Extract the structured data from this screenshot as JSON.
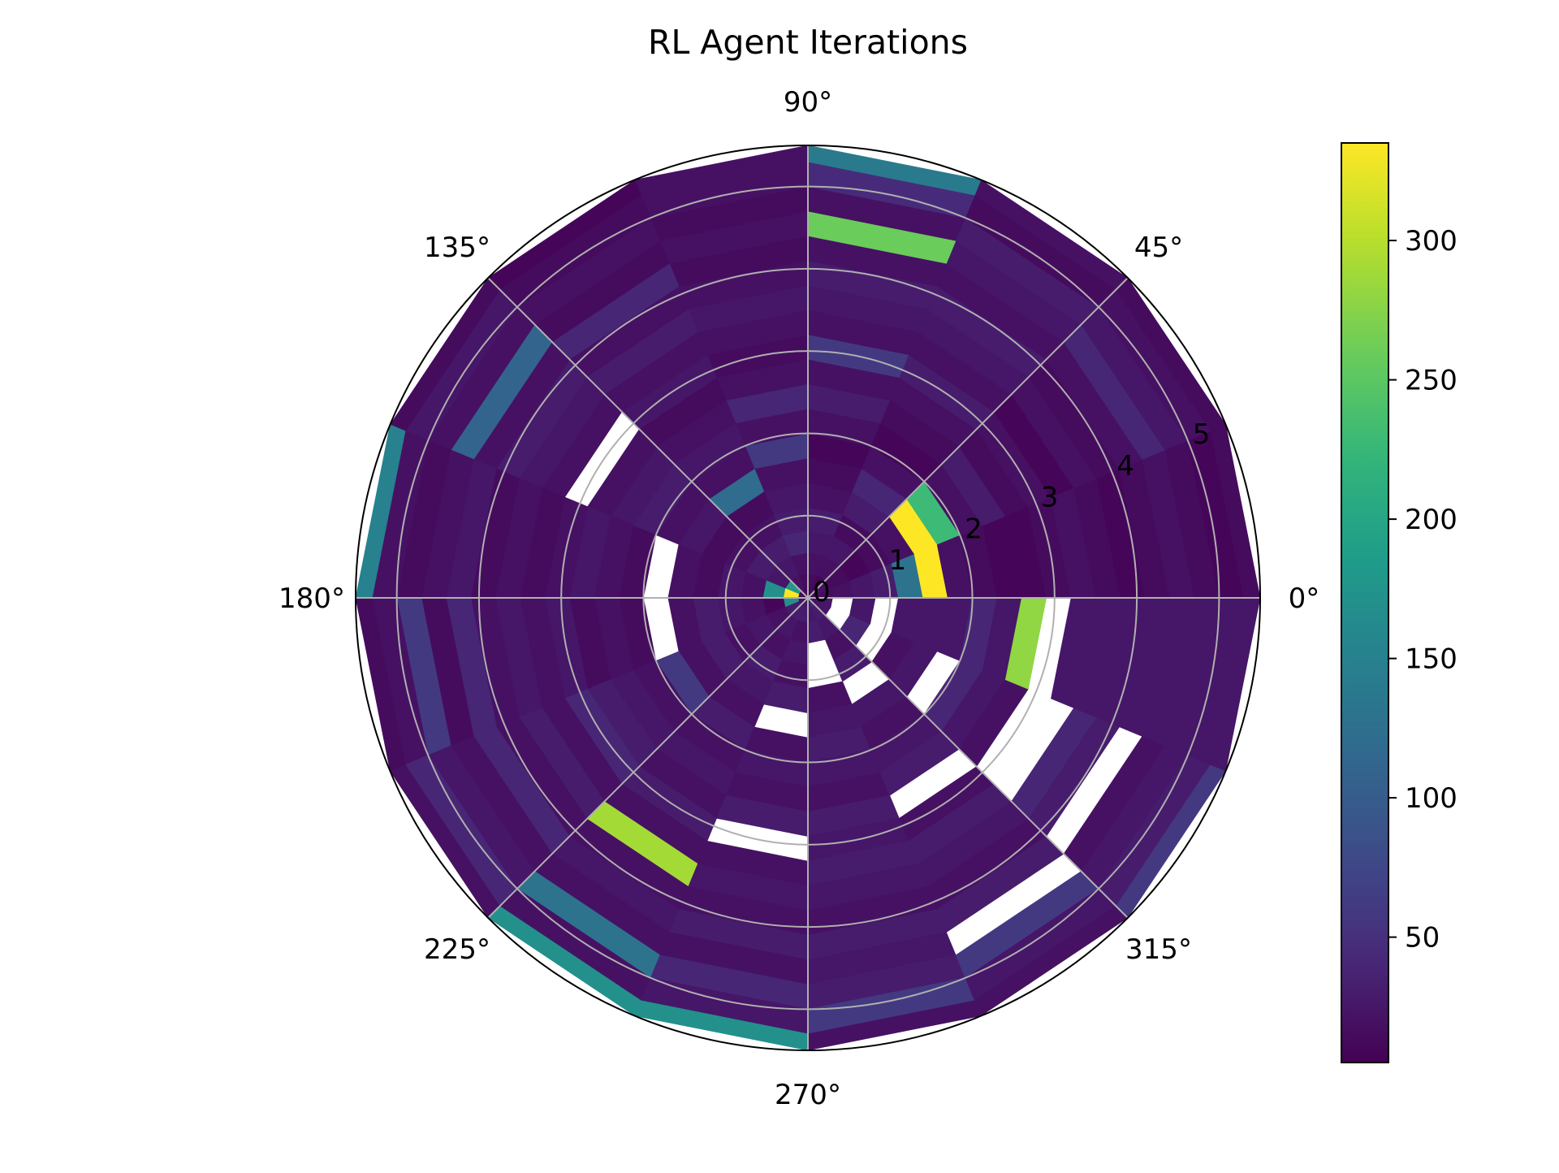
{
  "chart_data": {
    "type": "heatmap",
    "projection": "polar",
    "title": "RL Agent Iterations",
    "angle_ticks": [
      "0°",
      "45°",
      "90°",
      "135°",
      "180°",
      "225°",
      "270°",
      "315°"
    ],
    "radial_ticks": [
      "0",
      "1",
      "2",
      "3",
      "4",
      "5"
    ],
    "rlim": [
      0,
      5.5
    ],
    "theta_bin_width_deg": 22.5,
    "radial_bin_edges": [
      0,
      0.05,
      0.12,
      0.3,
      0.55,
      0.82,
      1.1,
      1.4,
      1.7,
      2.0,
      2.3,
      2.6,
      2.9,
      3.2,
      3.5,
      3.8,
      4.1,
      4.4,
      4.7,
      5.0,
      5.3,
      5.5
    ],
    "grid": true,
    "colormap": "viridis",
    "colorbar": {
      "ticks": [
        50,
        100,
        150,
        200,
        250,
        300
      ],
      "vmin": 5,
      "vmax": 335
    },
    "missing_color": "#ffffff",
    "values": [
      [
        5,
        10,
        15,
        20,
        25,
        30,
        130,
        335,
        20,
        15,
        10,
        10,
        15,
        20,
        15,
        10,
        15,
        20,
        15,
        10,
        15
      ],
      [
        5,
        10,
        20,
        15,
        10,
        15,
        20,
        335,
        230,
        20,
        30,
        15,
        20,
        10,
        20,
        15,
        20,
        40,
        25,
        20,
        15
      ],
      [
        5,
        15,
        10,
        20,
        25,
        15,
        30,
        40,
        20,
        10,
        15,
        20,
        30,
        20,
        25,
        30,
        20,
        25,
        30,
        15,
        20
      ],
      [
        5,
        10,
        15,
        20,
        25,
        30,
        20,
        15,
        10,
        20,
        30,
        20,
        60,
        20,
        25,
        30,
        20,
        260,
        20,
        45,
        140
      ],
      [
        5,
        10,
        15,
        20,
        40,
        30,
        25,
        20,
        60,
        20,
        40,
        20,
        15,
        20,
        25,
        20,
        15,
        20,
        15,
        20,
        20
      ],
      [
        5,
        15,
        20,
        25,
        30,
        20,
        15,
        120,
        20,
        25,
        20,
        15,
        25,
        20,
        30,
        20,
        40,
        15,
        20,
        15,
        10
      ],
      [
        5,
        10,
        180,
        25,
        30,
        20,
        15,
        25,
        20,
        30,
        25,
        20,
        null,
        20,
        25,
        30,
        20,
        110,
        20,
        25,
        15
      ],
      [
        5,
        15,
        335,
        170,
        20,
        25,
        15,
        20,
        null,
        15,
        20,
        25,
        20,
        15,
        20,
        15,
        25,
        20,
        15,
        20,
        150
      ],
      [
        5,
        20,
        170,
        10,
        20,
        25,
        30,
        20,
        null,
        15,
        20,
        15,
        25,
        20,
        25,
        20,
        40,
        15,
        60,
        20,
        15
      ],
      [
        5,
        20,
        30,
        20,
        25,
        20,
        30,
        20,
        60,
        20,
        25,
        30,
        40,
        20,
        30,
        20,
        40,
        20,
        25,
        40,
        20
      ],
      [
        5,
        20,
        30,
        25,
        20,
        30,
        25,
        20,
        30,
        20,
        25,
        20,
        30,
        20,
        290,
        20,
        25,
        20,
        130,
        20,
        170
      ],
      [
        5,
        25,
        30,
        20,
        25,
        20,
        30,
        null,
        20,
        25,
        20,
        30,
        null,
        20,
        25,
        20,
        30,
        20,
        40,
        25,
        170
      ],
      [
        5,
        30,
        25,
        30,
        null,
        null,
        20,
        25,
        30,
        25,
        20,
        30,
        25,
        30,
        25,
        20,
        30,
        25,
        30,
        60,
        20
      ],
      [
        5,
        40,
        30,
        25,
        20,
        30,
        null,
        25,
        20,
        25,
        30,
        null,
        20,
        30,
        25,
        20,
        30,
        null,
        60,
        25,
        20
      ],
      [
        5,
        20,
        25,
        null,
        40,
        null,
        20,
        25,
        null,
        40,
        25,
        20,
        null,
        null,
        40,
        30,
        null,
        20,
        25,
        30,
        60
      ],
      [
        5,
        20,
        25,
        null,
        25,
        null,
        25,
        25,
        25,
        40,
        25,
        280,
        null,
        25,
        25,
        25,
        25,
        25,
        25,
        25,
        25
      ]
    ]
  }
}
